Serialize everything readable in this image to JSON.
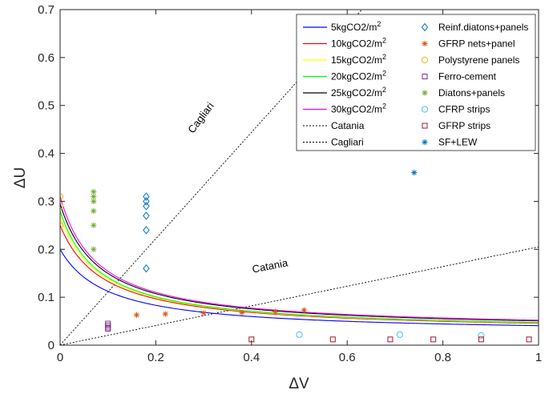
{
  "chart_data": {
    "type": "line",
    "title": "",
    "xlabel": "ΔV",
    "ylabel": "ΔU",
    "xlim": [
      0,
      1
    ],
    "ylim": [
      0,
      0.7
    ],
    "x_ticks": [
      "0",
      "0.2",
      "0.4",
      "0.6",
      "0.8",
      "1"
    ],
    "y_ticks": [
      "0",
      "0.1",
      "0.2",
      "0.3",
      "0.4",
      "0.5",
      "0.6",
      "0.7"
    ],
    "grid": false,
    "legend_position": "top-right",
    "curves": [
      {
        "name": "5kgCO2/m²",
        "name_base": "5kgCO2/m",
        "name_sup": "2",
        "color": "#0000ff",
        "kind": "hyperbolic",
        "y0": 0.2,
        "a": 0.0247,
        "b": 0.1
      },
      {
        "name": "10kgCO2/m²",
        "name_base": "10kgCO2/m",
        "name_sup": "2",
        "color": "#ff0000",
        "kind": "hyperbolic",
        "y0": 0.25,
        "a": 0.0271,
        "b": 0.0906
      },
      {
        "name": "15kgCO2/m²",
        "name_base": "15kgCO2/m",
        "name_sup": "2",
        "color": "#ffff00",
        "kind": "hyperbolic",
        "y0": 0.27,
        "a": 0.0279,
        "b": 0.0834
      },
      {
        "name": "20kgCO2/m²",
        "name_base": "20kgCO2/m",
        "name_sup": "2",
        "color": "#00ff00",
        "kind": "hyperbolic",
        "y0": 0.28,
        "a": 0.0283,
        "b": 0.0811
      },
      {
        "name": "25kgCO2/m²",
        "name_base": "25kgCO2/m",
        "name_sup": "2",
        "color": "#000000",
        "kind": "hyperbolic",
        "y0": 0.295,
        "a": 0.0307,
        "b": 0.0818
      },
      {
        "name": "30kgCO2/m²",
        "name_base": "30kgCO2/m",
        "name_sup": "2",
        "color": "#ff00ff",
        "kind": "hyperbolic",
        "y0": 0.31,
        "a": 0.0319,
        "b": 0.0783
      },
      {
        "name": "Catania",
        "color": "#000000",
        "kind": "ref-line",
        "slope": 0.205
      },
      {
        "name": "Cagliari",
        "color": "#000000",
        "kind": "ref-line",
        "slope": 1.11
      }
    ],
    "series": [
      {
        "name": "Reinf.diatons+panels",
        "marker": "diamond",
        "color": "#0072bd",
        "x": [
          0.18,
          0.18,
          0.18,
          0.18,
          0.18,
          0.18
        ],
        "y": [
          0.31,
          0.3,
          0.29,
          0.27,
          0.24,
          0.16
        ]
      },
      {
        "name": "GFRP nets+panel",
        "marker": "asterisk",
        "color": "#d95319",
        "x": [
          0.16,
          0.22,
          0.3,
          0.38,
          0.45,
          0.51
        ],
        "y": [
          0.063,
          0.065,
          0.067,
          0.068,
          0.07,
          0.073
        ]
      },
      {
        "name": "Polystyrene panels",
        "marker": "circle",
        "color": "#edb120",
        "x": [
          0,
          0,
          0
        ],
        "y": [
          0.31,
          0.29,
          0.25
        ]
      },
      {
        "name": "Ferro-cement",
        "marker": "square",
        "color": "#7e2f8e",
        "x": [
          0.1,
          0.1,
          0.1,
          0.1
        ],
        "y": [
          0.045,
          0.041,
          0.037,
          0.034
        ]
      },
      {
        "name": "Diatons+panels",
        "marker": "asterisk",
        "color": "#77ac30",
        "x": [
          0.07,
          0.07,
          0.07,
          0.07,
          0.07,
          0.07
        ],
        "y": [
          0.32,
          0.31,
          0.3,
          0.28,
          0.25,
          0.2
        ]
      },
      {
        "name": "CFRP strips",
        "marker": "circle",
        "color": "#4dbeee",
        "x": [
          0.5,
          0.71,
          0.88
        ],
        "y": [
          0.022,
          0.022,
          0.02
        ]
      },
      {
        "name": "GFRP strips",
        "marker": "square",
        "color": "#a2142f",
        "x": [
          0.4,
          0.57,
          0.69,
          0.78,
          0.88,
          0.98
        ],
        "y": [
          0.012,
          0.012,
          0.012,
          0.012,
          0.012,
          0.012
        ]
      },
      {
        "name": "SF+LEW",
        "marker": "asterisk",
        "color": "#0072bd",
        "x": [
          0.74
        ],
        "y": [
          0.36
        ]
      }
    ],
    "annotations": [
      {
        "text": "Cagliari",
        "x": 0.3,
        "y": 0.47,
        "angle_deg": -53
      },
      {
        "text": "Catania",
        "x": 0.44,
        "y": 0.158,
        "angle_deg": -11
      }
    ]
  }
}
